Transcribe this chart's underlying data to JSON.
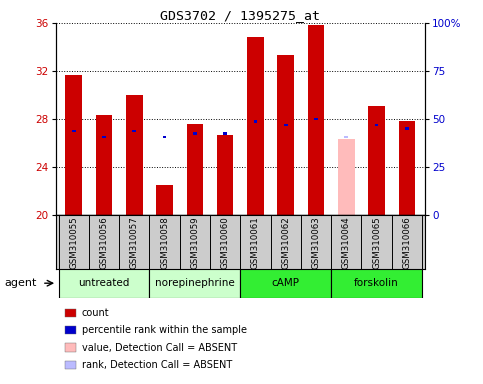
{
  "title": "GDS3702 / 1395275_at",
  "samples": [
    "GSM310055",
    "GSM310056",
    "GSM310057",
    "GSM310058",
    "GSM310059",
    "GSM310060",
    "GSM310061",
    "GSM310062",
    "GSM310063",
    "GSM310064",
    "GSM310065",
    "GSM310066"
  ],
  "red_values": [
    31.7,
    28.3,
    30.0,
    22.5,
    27.6,
    26.7,
    34.8,
    33.3,
    35.8,
    null,
    29.1,
    27.8
  ],
  "blue_values": [
    27.0,
    26.5,
    27.0,
    26.5,
    26.8,
    26.8,
    27.8,
    27.5,
    28.0,
    null,
    27.5,
    27.2
  ],
  "pink_value": 26.3,
  "lightblue_value": 26.5,
  "absent_index": 9,
  "ymin": 20,
  "ymax": 36,
  "yticks_left": [
    20,
    24,
    28,
    32,
    36
  ],
  "yticks_right_vals": [
    0,
    25,
    50,
    75,
    100
  ],
  "yticks_right_labels": [
    "0",
    "25",
    "50",
    "75",
    "100%"
  ],
  "ylabel_left_color": "#cc0000",
  "ylabel_right_color": "#0000cc",
  "groups": [
    {
      "label": "untreated",
      "start": 0,
      "end": 2,
      "color": "#ccffcc"
    },
    {
      "label": "norepinephrine",
      "start": 3,
      "end": 5,
      "color": "#ccffcc"
    },
    {
      "label": "cAMP",
      "start": 6,
      "end": 8,
      "color": "#33ee33"
    },
    {
      "label": "forskolin",
      "start": 9,
      "end": 11,
      "color": "#33ee33"
    }
  ],
  "bar_width": 0.55,
  "red_color": "#cc0000",
  "blue_color": "#0000cc",
  "pink_color": "#ffbbbb",
  "lightblue_color": "#bbbbff",
  "grid_color": "#000000",
  "bg_color": "#ffffff",
  "tick_label_area_color": "#cccccc",
  "agent_label": "agent",
  "legend_items": [
    {
      "color": "#cc0000",
      "label": "count"
    },
    {
      "color": "#0000cc",
      "label": "percentile rank within the sample"
    },
    {
      "color": "#ffbbbb",
      "label": "value, Detection Call = ABSENT"
    },
    {
      "color": "#bbbbff",
      "label": "rank, Detection Call = ABSENT"
    }
  ]
}
